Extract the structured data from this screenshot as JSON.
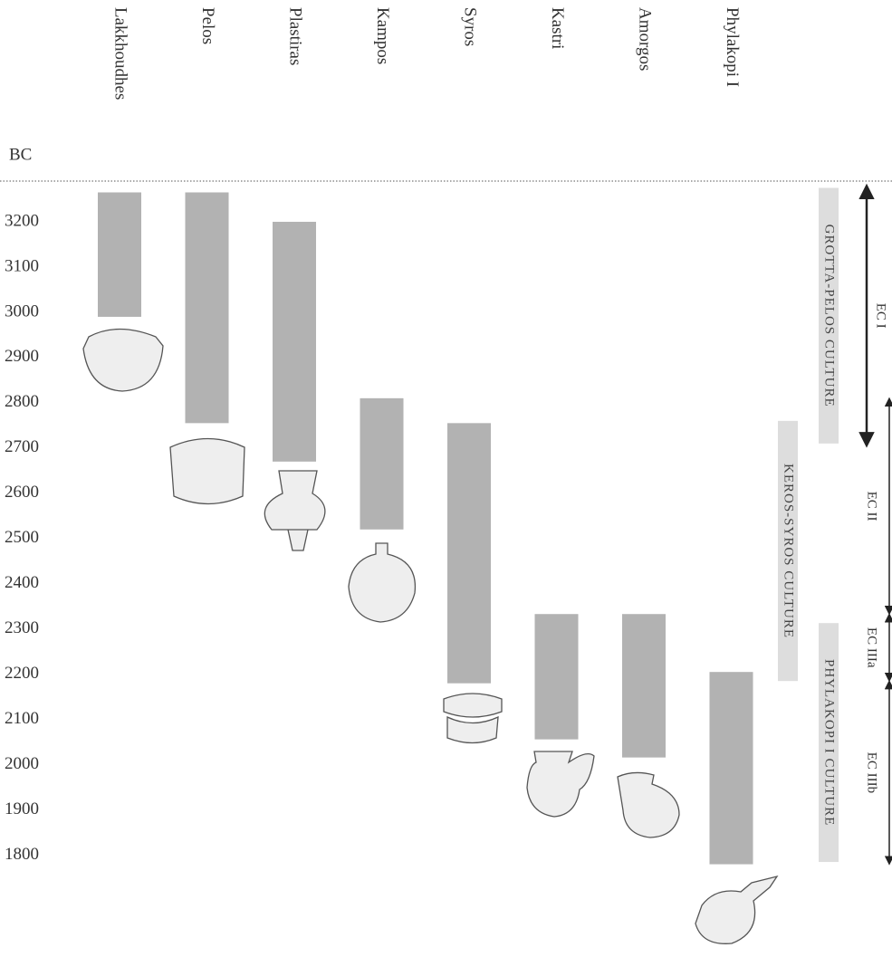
{
  "chart_data": {
    "type": "range",
    "axis_label": "BC",
    "categories": [
      "Lakkhoudhes",
      "Pelos",
      "Plastiras",
      "Kampos",
      "Syros",
      "Kastri",
      "Amorgos",
      "Phylakopi I"
    ],
    "ranges": [
      [
        3265,
        2990
      ],
      [
        3265,
        2755
      ],
      [
        3200,
        2670
      ],
      [
        2810,
        2520
      ],
      [
        2755,
        2180
      ],
      [
        2333,
        2056
      ],
      [
        2333,
        2016
      ],
      [
        2205,
        1780
      ]
    ],
    "color": "#a4a4a4",
    "ylim": [
      3290,
      1575
    ],
    "yticks": [
      3200,
      3100,
      3000,
      2900,
      2800,
      2700,
      2600,
      2500,
      2400,
      2300,
      2200,
      2100,
      2000,
      1900,
      1800
    ],
    "grid": false,
    "cultures": [
      {
        "label": "GROTTA-PELOS CULTURE",
        "range": [
          3275,
          2710
        ]
      },
      {
        "label": "KEROS-SYROS CULTURE",
        "range": [
          2760,
          2185
        ]
      },
      {
        "label": "PHYLAKOPI I CULTURE",
        "range": [
          2313,
          1785
        ]
      }
    ],
    "periods": [
      {
        "label": "EC I",
        "range": [
          3275,
          2710
        ]
      },
      {
        "label": "EC II",
        "range": [
          2810,
          2333
        ]
      },
      {
        "label": "EC IIIa",
        "range": [
          2333,
          2185
        ]
      },
      {
        "label": "EC IIIb",
        "range": [
          2185,
          1780
        ]
      }
    ]
  }
}
